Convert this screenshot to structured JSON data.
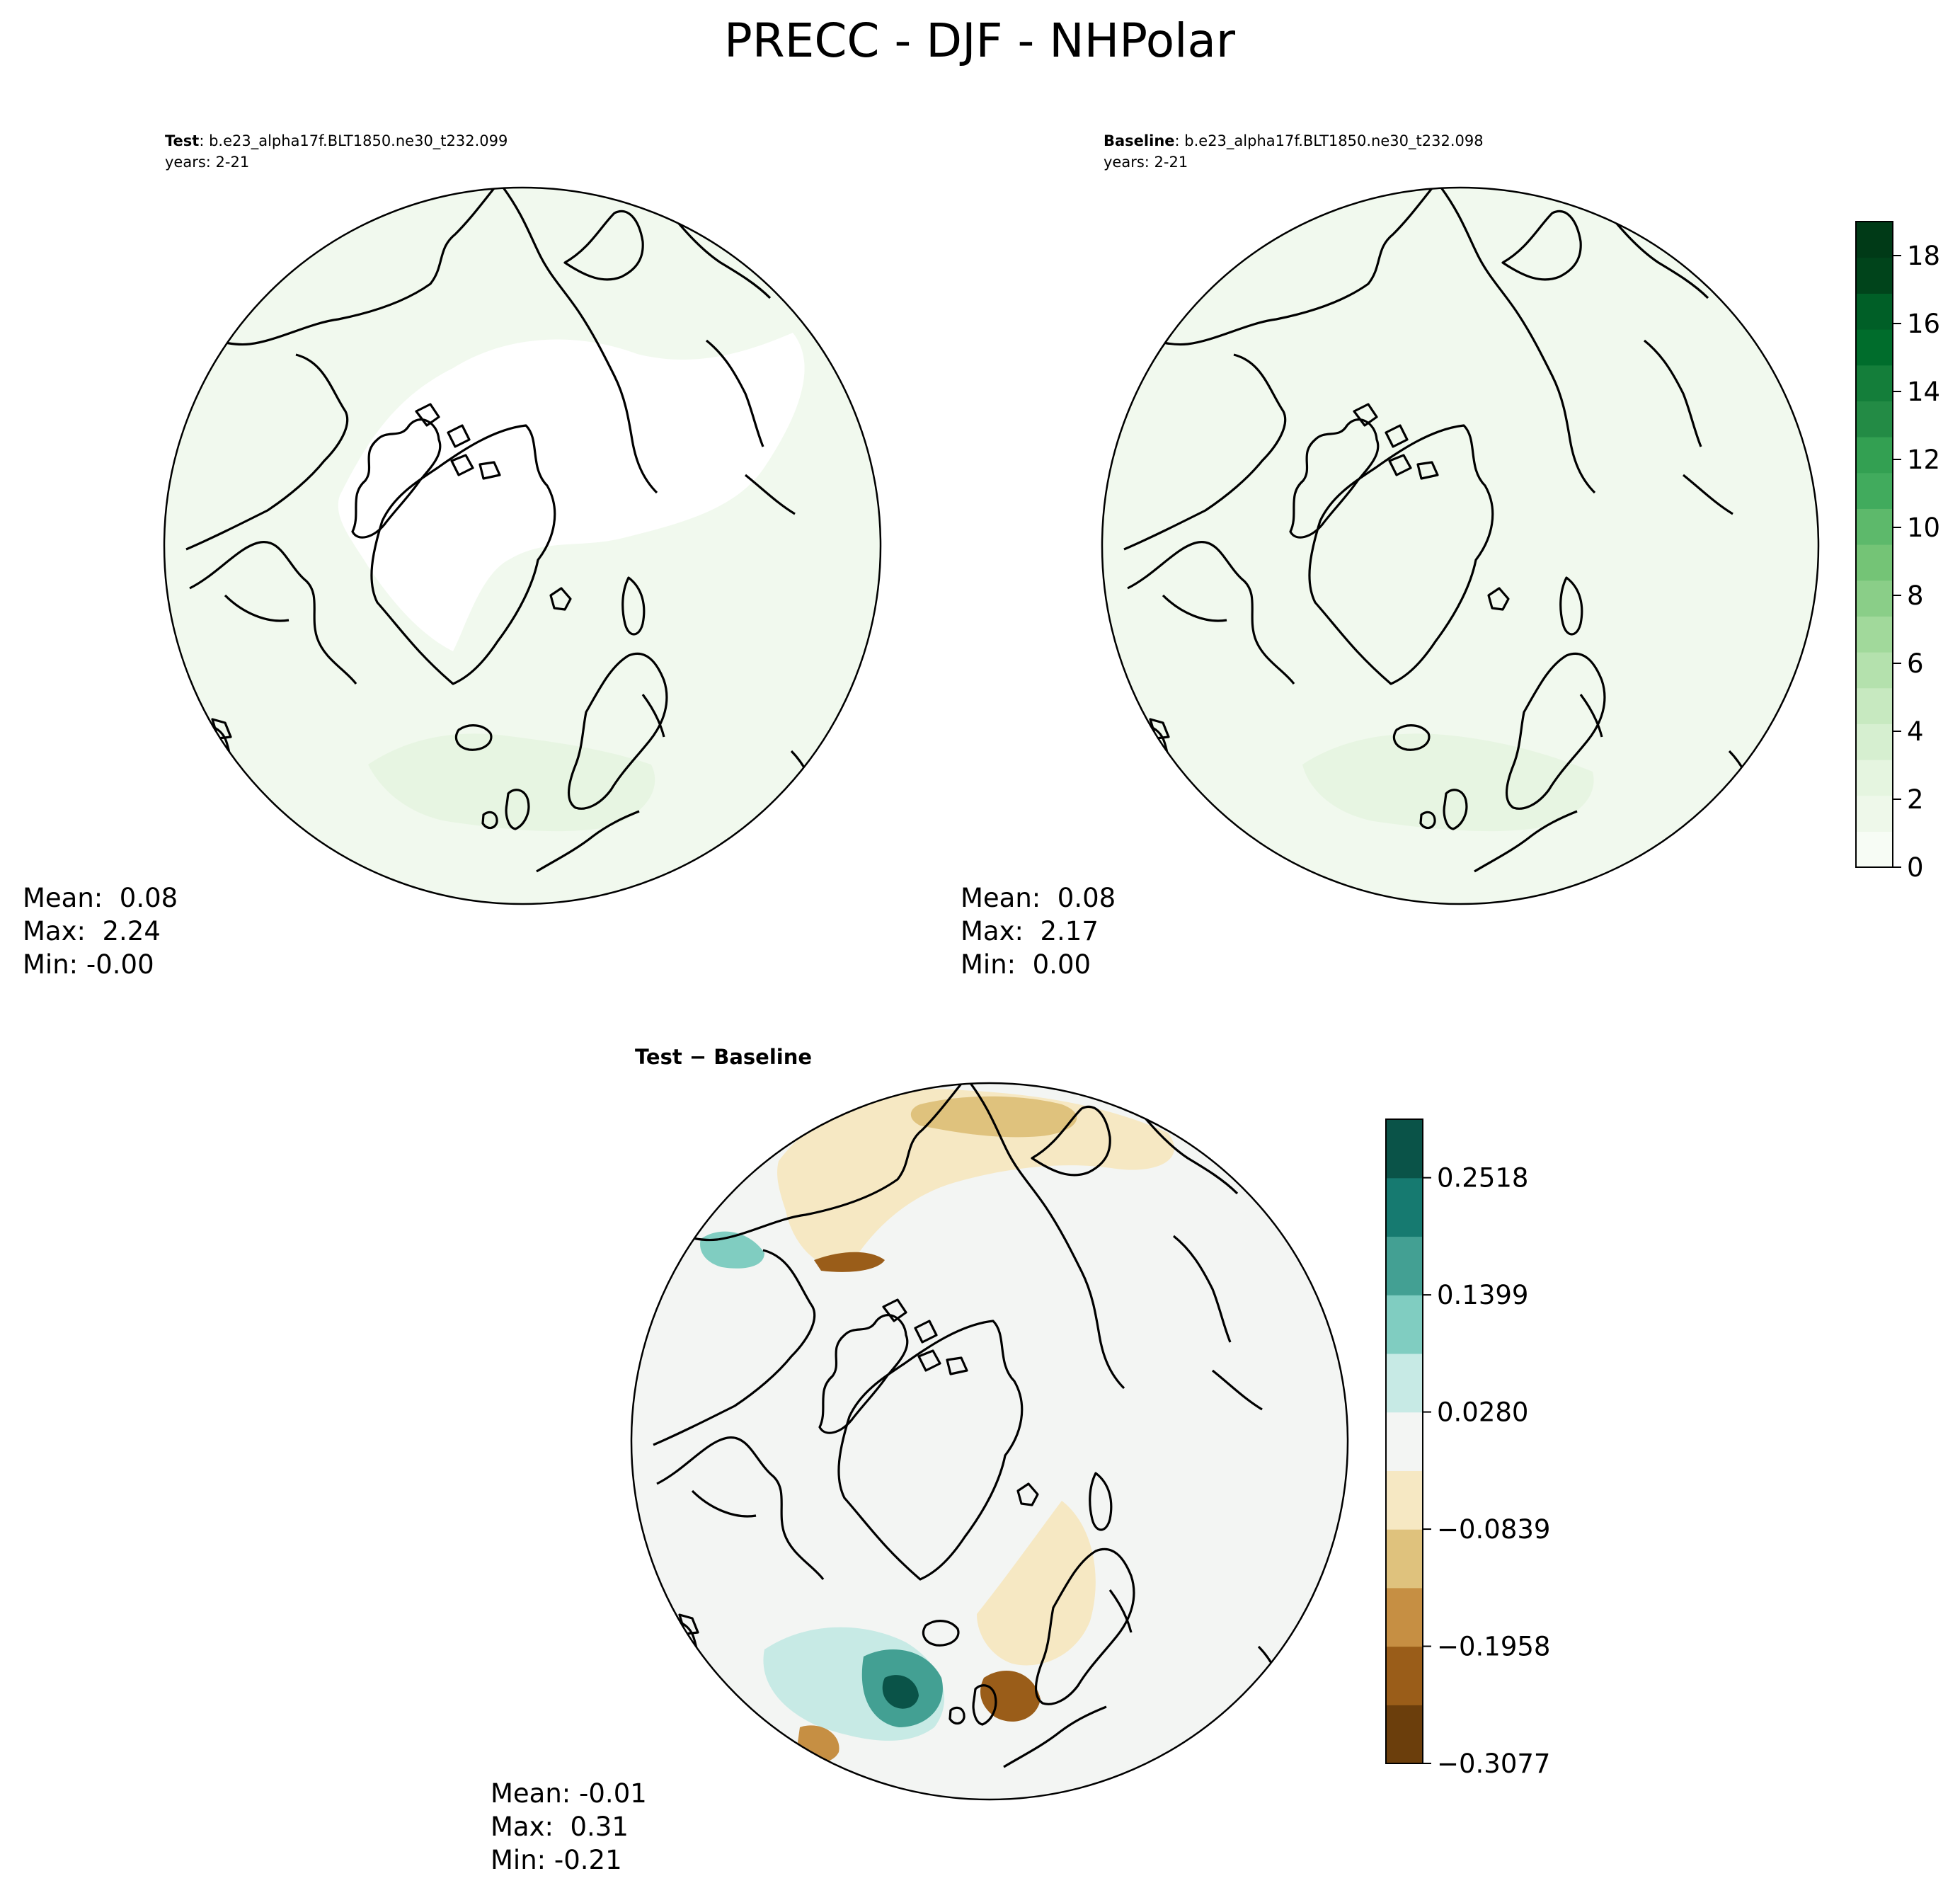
{
  "title": "PRECC - DJF - NHPolar",
  "colors": {
    "land_outline": "#000000",
    "frame": "#000000",
    "green_scale": [
      "#f7fcf5",
      "#eef8ea",
      "#e5f5e0",
      "#d6efd0",
      "#c7e9c0",
      "#b4e1ad",
      "#a1d99b",
      "#8ace88",
      "#74c476",
      "#5db96b",
      "#41ab5d",
      "#33a052",
      "#238b45",
      "#147e3a",
      "#006d2c",
      "#005f27",
      "#00441b",
      "#003a17"
    ],
    "diverging_scale": [
      "#6b3e0c",
      "#9a5d19",
      "#c68f43",
      "#dfc27d",
      "#f6e8c3",
      "#f3f5f3",
      "#c7eae5",
      "#80cdc1",
      "#43a093",
      "#167a70",
      "#0a5348"
    ]
  },
  "chart_data": [
    {
      "type": "heatmap",
      "name": "test-panel",
      "subtitle_bold": "Test",
      "subtitle_rest": ": b.e23_alpha17f.BLT1850.ne30_t232.099",
      "years": "years: 2-21",
      "projection": "north-polar-stereographic",
      "stats": {
        "mean": "Mean:  0.08",
        "max": "Max:  2.24",
        "min": "Min: -0.00"
      },
      "value_range": [
        -0.0,
        2.24
      ]
    },
    {
      "type": "heatmap",
      "name": "baseline-panel",
      "subtitle_bold": "Baseline",
      "subtitle_rest": ": b.e23_alpha17f.BLT1850.ne30_t232.098",
      "years": "years: 2-21",
      "projection": "north-polar-stereographic",
      "stats": {
        "mean": "Mean:  0.08",
        "max": "Max:  2.17",
        "min": "Min:  0.00"
      },
      "value_range": [
        0.0,
        2.17
      ],
      "colorbar": {
        "min": 0,
        "max": 19,
        "ticks": [
          "0",
          "2",
          "4",
          "6",
          "8",
          "10",
          "12",
          "14",
          "16",
          "18"
        ],
        "tick_values": [
          0,
          2,
          4,
          6,
          8,
          10,
          12,
          14,
          16,
          18
        ],
        "levels": 18
      }
    },
    {
      "type": "heatmap",
      "name": "difference-panel",
      "subtitle_bold": "Test − Baseline",
      "projection": "north-polar-stereographic",
      "stats": {
        "mean": "Mean: -0.01",
        "max": "Max:  0.31",
        "min": "Min: -0.21"
      },
      "value_range": [
        -0.21,
        0.31
      ],
      "colorbar": {
        "min": -0.3077,
        "max": 0.3077,
        "ticks": [
          "0.2518",
          "0.1399",
          "0.0280",
          "−0.0839",
          "−0.1958",
          "−0.3077"
        ],
        "tick_values": [
          0.2518,
          0.1399,
          0.028,
          -0.0839,
          -0.1958,
          -0.3077
        ],
        "levels": 11
      }
    }
  ]
}
